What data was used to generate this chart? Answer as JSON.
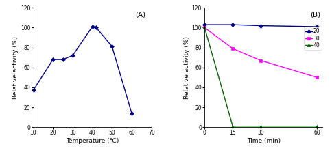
{
  "A": {
    "x": [
      10,
      20,
      25,
      30,
      40,
      42,
      50,
      60
    ],
    "y": [
      37,
      68,
      68,
      72,
      101,
      100,
      81,
      14
    ],
    "color": "#00008B",
    "marker": "D",
    "markersize": 3,
    "linewidth": 1.0,
    "xlabel": "Temperature (℃)",
    "ylabel": "Relative activity (%)",
    "xlim": [
      10,
      70
    ],
    "ylim": [
      0,
      120
    ],
    "xticks": [
      10,
      20,
      30,
      40,
      50,
      60,
      70
    ],
    "yticks": [
      0,
      20,
      40,
      60,
      80,
      100,
      120
    ],
    "label": "(A)"
  },
  "B": {
    "series": [
      {
        "label": "20",
        "x": [
          0,
          15,
          30,
          60
        ],
        "y": [
          103,
          103,
          102,
          101
        ],
        "color": "#00008B",
        "marker": "D"
      },
      {
        "label": "30",
        "x": [
          0,
          15,
          30,
          60
        ],
        "y": [
          100,
          79,
          67,
          50
        ],
        "color": "#FF00FF",
        "marker": "s"
      },
      {
        "label": "40",
        "x": [
          0,
          15,
          30,
          60
        ],
        "y": [
          100,
          1,
          1,
          1
        ],
        "color": "#006400",
        "marker": "^"
      }
    ],
    "xlabel": "Time (min)",
    "ylabel": "Relative activity (%)",
    "xlim": [
      0,
      63
    ],
    "ylim": [
      0,
      120
    ],
    "xticks": [
      0,
      15,
      30,
      60
    ],
    "yticks": [
      0,
      20,
      40,
      60,
      80,
      100,
      120
    ],
    "label": "(B)"
  }
}
